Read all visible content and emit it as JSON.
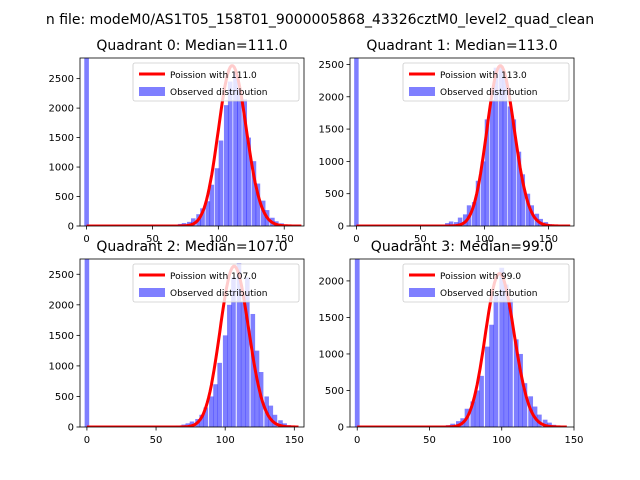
{
  "suptitle": "n file: modeM0/AS1T05_158T01_9000005868_43326cztM0_level2_quad_clean",
  "chart_data": [
    {
      "type": "bar",
      "title": "Quadrant 0: Median=111.0",
      "xlim": [
        -5,
        165
      ],
      "ylim": [
        0,
        2850
      ],
      "xticks": [
        0,
        50,
        100,
        150
      ],
      "yticks": [
        0,
        500,
        1000,
        1500,
        2000,
        2500
      ],
      "grid": false,
      "legend_position": "top-right",
      "legend": [
        "Poission with 111.0",
        "Observed distribution"
      ],
      "bin_width": 3.5,
      "bins": [
        [
          0,
          2850
        ],
        [
          56,
          2
        ],
        [
          60,
          5
        ],
        [
          64,
          12
        ],
        [
          67,
          20
        ],
        [
          71,
          35
        ],
        [
          74,
          50
        ],
        [
          78,
          70
        ],
        [
          81,
          130
        ],
        [
          85,
          200
        ],
        [
          88,
          300
        ],
        [
          92,
          420
        ],
        [
          95,
          700
        ],
        [
          99,
          980
        ],
        [
          102,
          1450
        ],
        [
          106,
          2050
        ],
        [
          109,
          2450
        ],
        [
          113,
          2620
        ],
        [
          116,
          2330
        ],
        [
          120,
          2150
        ],
        [
          123,
          1500
        ],
        [
          127,
          1100
        ],
        [
          130,
          720
        ],
        [
          134,
          430
        ],
        [
          137,
          270
        ],
        [
          141,
          140
        ],
        [
          144,
          80
        ],
        [
          148,
          45
        ],
        [
          151,
          25
        ],
        [
          155,
          12
        ],
        [
          158,
          5
        ]
      ],
      "series": [
        {
          "name": "Poission with 111.0",
          "type": "line",
          "mean": 111.0,
          "x_range": [
            0,
            163
          ],
          "peak": 2720,
          "color": "#ff0000"
        },
        {
          "name": "Observed distribution",
          "type": "histogram",
          "color": "#8080ff"
        }
      ]
    },
    {
      "type": "bar",
      "title": "Quadrant 1: Median=113.0",
      "xlim": [
        -5,
        170
      ],
      "ylim": [
        0,
        2600
      ],
      "xticks": [
        0,
        50,
        100,
        150
      ],
      "yticks": [
        0,
        500,
        1000,
        1500,
        2000,
        2500
      ],
      "grid": false,
      "legend_position": "top-right",
      "legend": [
        "Poission with 113.0",
        "Observed distribution"
      ],
      "bin_width": 3.5,
      "bins": [
        [
          0,
          2600
        ],
        [
          56,
          2
        ],
        [
          60,
          5
        ],
        [
          64,
          12
        ],
        [
          67,
          22
        ],
        [
          71,
          45
        ],
        [
          74,
          70
        ],
        [
          78,
          60
        ],
        [
          81,
          130
        ],
        [
          85,
          180
        ],
        [
          88,
          320
        ],
        [
          92,
          370
        ],
        [
          95,
          700
        ],
        [
          99,
          1000
        ],
        [
          102,
          1650
        ],
        [
          106,
          1950
        ],
        [
          109,
          2450
        ],
        [
          113,
          2480
        ],
        [
          116,
          2300
        ],
        [
          120,
          1850
        ],
        [
          123,
          1650
        ],
        [
          127,
          1150
        ],
        [
          130,
          800
        ],
        [
          134,
          500
        ],
        [
          137,
          320
        ],
        [
          141,
          190
        ],
        [
          144,
          110
        ],
        [
          148,
          60
        ],
        [
          151,
          30
        ],
        [
          155,
          15
        ],
        [
          158,
          6
        ]
      ],
      "series": [
        {
          "name": "Poission with 113.0",
          "type": "line",
          "mean": 113.0,
          "x_range": [
            0,
            167
          ],
          "peak": 2480,
          "color": "#ff0000"
        },
        {
          "name": "Observed distribution",
          "type": "histogram",
          "color": "#8080ff"
        }
      ]
    },
    {
      "type": "bar",
      "title": "Quadrant 2: Median=107.0",
      "xlim": [
        -5,
        157
      ],
      "ylim": [
        0,
        2750
      ],
      "xticks": [
        0,
        50,
        100,
        150
      ],
      "yticks": [
        0,
        500,
        1000,
        1500,
        2000,
        2500
      ],
      "grid": false,
      "legend_position": "top-right",
      "legend": [
        "Poission with 107.0",
        "Observed distribution"
      ],
      "bin_width": 3.3,
      "bins": [
        [
          0,
          2750
        ],
        [
          56,
          2
        ],
        [
          60,
          5
        ],
        [
          63,
          12
        ],
        [
          66,
          25
        ],
        [
          70,
          40
        ],
        [
          73,
          60
        ],
        [
          76,
          90
        ],
        [
          80,
          130
        ],
        [
          83,
          200
        ],
        [
          86,
          320
        ],
        [
          90,
          500
        ],
        [
          93,
          700
        ],
        [
          96,
          1050
        ],
        [
          100,
          1500
        ],
        [
          103,
          2000
        ],
        [
          106,
          2450
        ],
        [
          110,
          2680
        ],
        [
          113,
          2050
        ],
        [
          116,
          2450
        ],
        [
          120,
          1850
        ],
        [
          123,
          1250
        ],
        [
          126,
          900
        ],
        [
          130,
          500
        ],
        [
          133,
          350
        ],
        [
          136,
          200
        ],
        [
          140,
          110
        ],
        [
          143,
          60
        ],
        [
          146,
          30
        ],
        [
          150,
          15
        ]
      ],
      "series": [
        {
          "name": "Poission with 107.0",
          "type": "line",
          "mean": 107.0,
          "x_range": [
            0,
            153
          ],
          "peak": 2630,
          "color": "#ff0000"
        },
        {
          "name": "Observed distribution",
          "type": "histogram",
          "color": "#8080ff"
        }
      ]
    },
    {
      "type": "bar",
      "title": "Quadrant 3: Median=99.0",
      "xlim": [
        -5,
        150
      ],
      "ylim": [
        0,
        2300
      ],
      "xticks": [
        0,
        50,
        100,
        150
      ],
      "yticks": [
        0,
        500,
        1000,
        1500,
        2000
      ],
      "grid": false,
      "legend_position": "top-right",
      "legend": [
        "Poission with 99.0",
        "Observed distribution"
      ],
      "bin_width": 3.3,
      "bins": [
        [
          0,
          2300
        ],
        [
          53,
          2
        ],
        [
          56,
          6
        ],
        [
          60,
          15
        ],
        [
          63,
          25
        ],
        [
          66,
          45
        ],
        [
          70,
          80
        ],
        [
          73,
          120
        ],
        [
          76,
          250
        ],
        [
          80,
          350
        ],
        [
          83,
          500
        ],
        [
          86,
          700
        ],
        [
          90,
          1100
        ],
        [
          93,
          1400
        ],
        [
          96,
          1800
        ],
        [
          100,
          2180
        ],
        [
          103,
          1950
        ],
        [
          106,
          1750
        ],
        [
          110,
          1200
        ],
        [
          113,
          1000
        ],
        [
          116,
          600
        ],
        [
          120,
          420
        ],
        [
          123,
          280
        ],
        [
          126,
          170
        ],
        [
          130,
          100
        ],
        [
          133,
          60
        ],
        [
          136,
          30
        ],
        [
          140,
          15
        ],
        [
          143,
          6
        ]
      ],
      "series": [
        {
          "name": "Poission with 99.0",
          "type": "line",
          "mean": 99.0,
          "x_range": [
            0,
            145
          ],
          "peak": 2100,
          "color": "#ff0000"
        },
        {
          "name": "Observed distribution",
          "type": "histogram",
          "color": "#8080ff"
        }
      ]
    }
  ]
}
